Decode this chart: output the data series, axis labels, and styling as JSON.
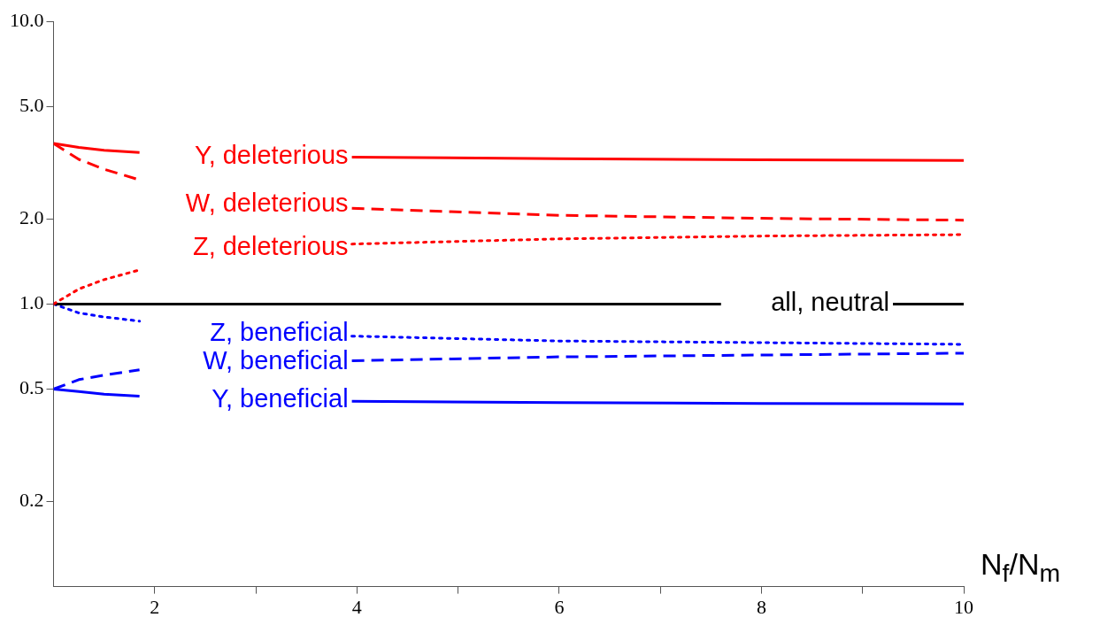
{
  "chart_data": {
    "type": "line",
    "xlabel": "N$_{f}$/N$_{m}$",
    "log": "y",
    "grid": false,
    "legend": false,
    "marker": "none",
    "x": [
      1,
      1.25,
      1.5,
      1.85,
      2.9,
      3.95,
      6,
      8,
      10
    ],
    "xlim": [
      1,
      10
    ],
    "xticks": [
      2,
      {
        "value": 3,
        "label": null
      },
      4,
      {
        "value": 5,
        "label": null
      },
      6,
      {
        "value": 7,
        "label": null
      },
      8,
      {
        "value": 9,
        "label": null
      },
      10
    ],
    "ylim": [
      0.1,
      10
    ],
    "yticks": [
      {
        "value": 0.2,
        "label": "0.2"
      },
      {
        "value": 0.5,
        "label": "0.5"
      },
      {
        "value": 1,
        "label": "1.0"
      },
      {
        "value": 2,
        "label": "2.0"
      },
      {
        "value": 5,
        "label": "5.0"
      },
      {
        "value": 10,
        "label": "10.0"
      }
    ],
    "series": [
      {
        "name": "Y, deleterious",
        "color": "#ff0000",
        "line_style": "solid",
        "values": [
          3.7,
          3.58,
          3.5,
          3.44,
          null,
          3.31,
          3.27,
          3.24,
          3.22
        ]
      },
      {
        "name": "W, deleterious",
        "color": "#ff0000",
        "line_style": "dashed",
        "values": [
          3.7,
          3.25,
          3.0,
          2.75,
          null,
          2.18,
          2.06,
          2.01,
          1.98
        ]
      },
      {
        "name": "Z, deleterious",
        "color": "#ff0000",
        "line_style": "dotted",
        "values": [
          1.0,
          1.13,
          1.22,
          1.32,
          null,
          1.63,
          1.7,
          1.74,
          1.76
        ]
      },
      {
        "name": "all, neutral",
        "color": "#000000",
        "line_style": "solid",
        "x": [
          1,
          7.6,
          8.5,
          9.3,
          10
        ],
        "values": [
          1,
          1,
          null,
          1,
          1
        ]
      },
      {
        "name": "Z, beneficial",
        "color": "#0000ff",
        "line_style": "dotted",
        "values": [
          1.0,
          0.93,
          0.9,
          0.87,
          null,
          0.77,
          0.74,
          0.73,
          0.72
        ]
      },
      {
        "name": "W, beneficial",
        "color": "#0000ff",
        "line_style": "dashed",
        "values": [
          0.5,
          0.54,
          0.56,
          0.585,
          null,
          0.63,
          0.65,
          0.66,
          0.67
        ]
      },
      {
        "name": "Y, beneficial",
        "color": "#0000ff",
        "line_style": "solid",
        "values": [
          0.5,
          0.49,
          0.48,
          0.472,
          null,
          0.453,
          0.448,
          0.445,
          0.443
        ]
      }
    ]
  }
}
